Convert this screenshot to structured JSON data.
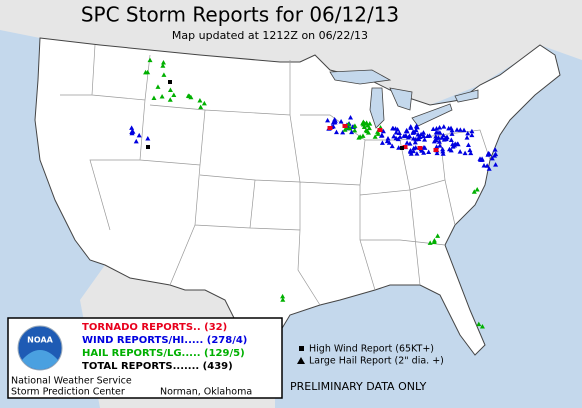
{
  "header": {
    "title": "SPC Storm Reports for 06/12/13",
    "subtitle": "Map updated at 1212Z on 06/22/13"
  },
  "legend": {
    "logo": "NOAA",
    "items": [
      {
        "label": "TORNADO REPORTS.. (32)",
        "color": "#e8001c"
      },
      {
        "label": "WIND REPORTS/HI..... (278/4)",
        "color": "#0000e0"
      },
      {
        "label": "HAIL REPORTS/LG..... (129/5)",
        "color": "#00b000"
      },
      {
        "label": "TOTAL REPORTS....... (439)",
        "color": "#000000"
      }
    ],
    "office": [
      "National Weather Service",
      "Storm Prediction Center"
    ],
    "location": "Norman, Oklahoma"
  },
  "key": [
    "High Wind Report (65KT+)",
    "Large Hail Report (2\" dia. +)"
  ],
  "footer": "PRELIMINARY DATA ONLY"
}
